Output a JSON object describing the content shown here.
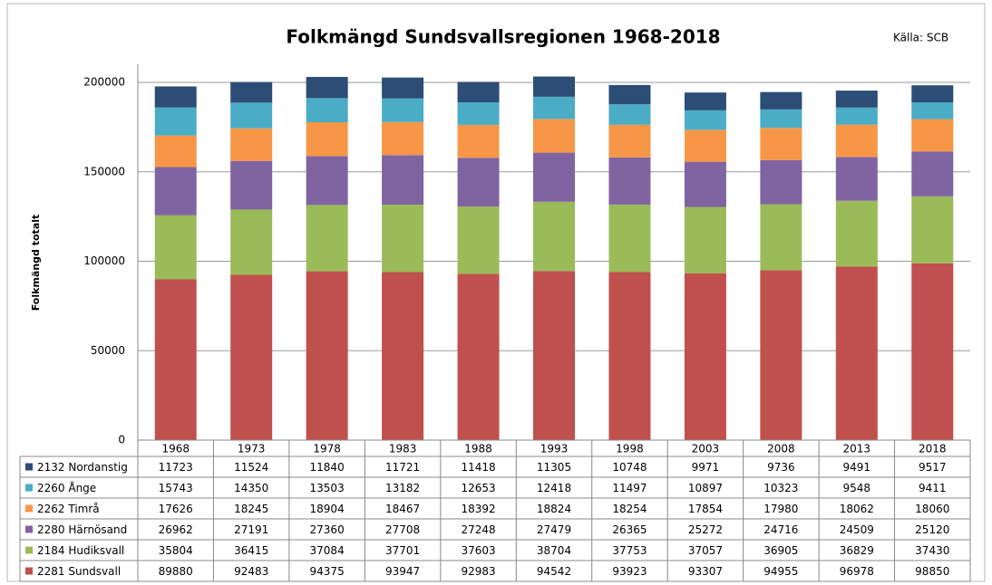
{
  "chart_data": {
    "type": "stacked_bar",
    "title": "Folkmängd Sundsvallsregionen 1968-2018",
    "source": "Källa: SCB",
    "y_label": "Folkmängd totalt",
    "categories": [
      "1968",
      "1973",
      "1978",
      "1983",
      "1988",
      "1993",
      "1998",
      "2003",
      "2008",
      "2013",
      "2018"
    ],
    "series": [
      {
        "name": "2281 Sundsvall",
        "color": "#c0504d",
        "values": [
          89880,
          92483,
          94375,
          93947,
          92983,
          94542,
          93923,
          93307,
          94955,
          96978,
          98850
        ]
      },
      {
        "name": "2184 Hudiksvall",
        "color": "#9bbb59",
        "values": [
          35804,
          36415,
          37084,
          37701,
          37603,
          38704,
          37753,
          37057,
          36905,
          36829,
          37430
        ]
      },
      {
        "name": "2280 Härnösand",
        "color": "#8064a2",
        "values": [
          26962,
          27191,
          27360,
          27708,
          27248,
          27479,
          26365,
          25272,
          24716,
          24509,
          25120
        ]
      },
      {
        "name": "2262 Timrå",
        "color": "#f79646",
        "values": [
          17626,
          18245,
          18904,
          18467,
          18392,
          18824,
          18254,
          17854,
          17980,
          18062,
          18060
        ]
      },
      {
        "name": "2260 Ånge",
        "color": "#4bacc6",
        "values": [
          15743,
          14350,
          13503,
          13182,
          12653,
          12418,
          11497,
          10897,
          10323,
          9548,
          9411
        ]
      },
      {
        "name": "2132 Nordanstig",
        "color": "#2c4d75",
        "values": [
          11723,
          11524,
          11840,
          11721,
          11418,
          11305,
          10748,
          9971,
          9736,
          9491,
          9517
        ]
      }
    ],
    "ylim": [
      0,
      210000
    ],
    "yticks": [
      0,
      50000,
      100000,
      150000,
      200000
    ],
    "grid": true
  }
}
